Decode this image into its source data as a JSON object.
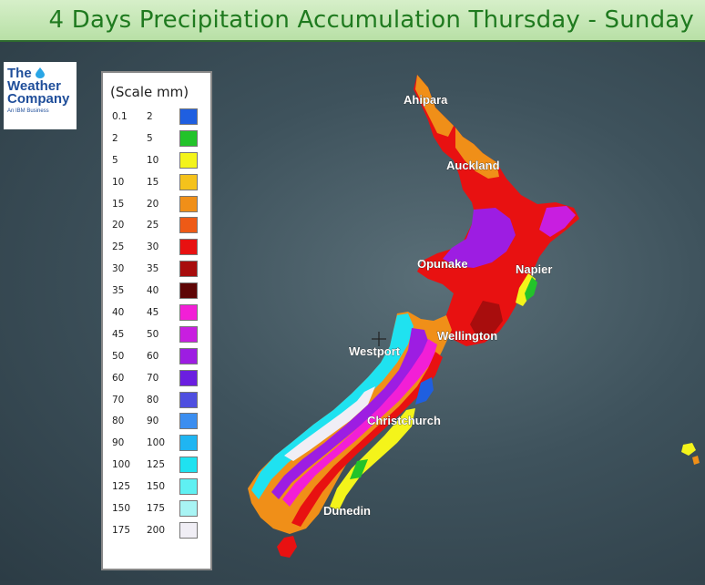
{
  "title": "4 Days Precipitation Accumulation Thursday - Sunday",
  "logo": {
    "line1": "The",
    "line2": "Weather",
    "line3": "Company",
    "tagline": "An IBM Business",
    "icon": "water-drop-icon",
    "brand_color": "#1f4e9a"
  },
  "legend": {
    "title": "(Scale mm)",
    "rows": [
      {
        "min": "0.1",
        "max": "2",
        "color": "#1f5fe0"
      },
      {
        "min": "2",
        "max": "5",
        "color": "#22c32a"
      },
      {
        "min": "5",
        "max": "10",
        "color": "#f4f41a"
      },
      {
        "min": "10",
        "max": "15",
        "color": "#f5c21b"
      },
      {
        "min": "15",
        "max": "20",
        "color": "#f08f18"
      },
      {
        "min": "20",
        "max": "25",
        "color": "#ee5a16"
      },
      {
        "min": "25",
        "max": "30",
        "color": "#e81111"
      },
      {
        "min": "30",
        "max": "35",
        "color": "#a80d0d"
      },
      {
        "min": "35",
        "max": "40",
        "color": "#5e0505"
      },
      {
        "min": "40",
        "max": "45",
        "color": "#f21fd6"
      },
      {
        "min": "45",
        "max": "50",
        "color": "#c81ee0"
      },
      {
        "min": "50",
        "max": "60",
        "color": "#9d1de2"
      },
      {
        "min": "60",
        "max": "70",
        "color": "#6b1ee0"
      },
      {
        "min": "70",
        "max": "80",
        "color": "#4f4fe0"
      },
      {
        "min": "80",
        "max": "90",
        "color": "#3b8ef0"
      },
      {
        "min": "90",
        "max": "100",
        "color": "#1fb5f2"
      },
      {
        "min": "100",
        "max": "125",
        "color": "#1fe2f0"
      },
      {
        "min": "125",
        "max": "150",
        "color": "#5ff0f2"
      },
      {
        "min": "150",
        "max": "175",
        "color": "#a8f4f4"
      },
      {
        "min": "175",
        "max": "200",
        "color": "#f0eef5"
      }
    ]
  },
  "cities": {
    "ahipara": "Ahipara",
    "auckland": "Auckland",
    "opunake": "Opunake",
    "napier": "Napier",
    "wellington": "Wellington",
    "westport": "Westport",
    "christchurch": "Christchurch",
    "dunedin": "Dunedin"
  }
}
